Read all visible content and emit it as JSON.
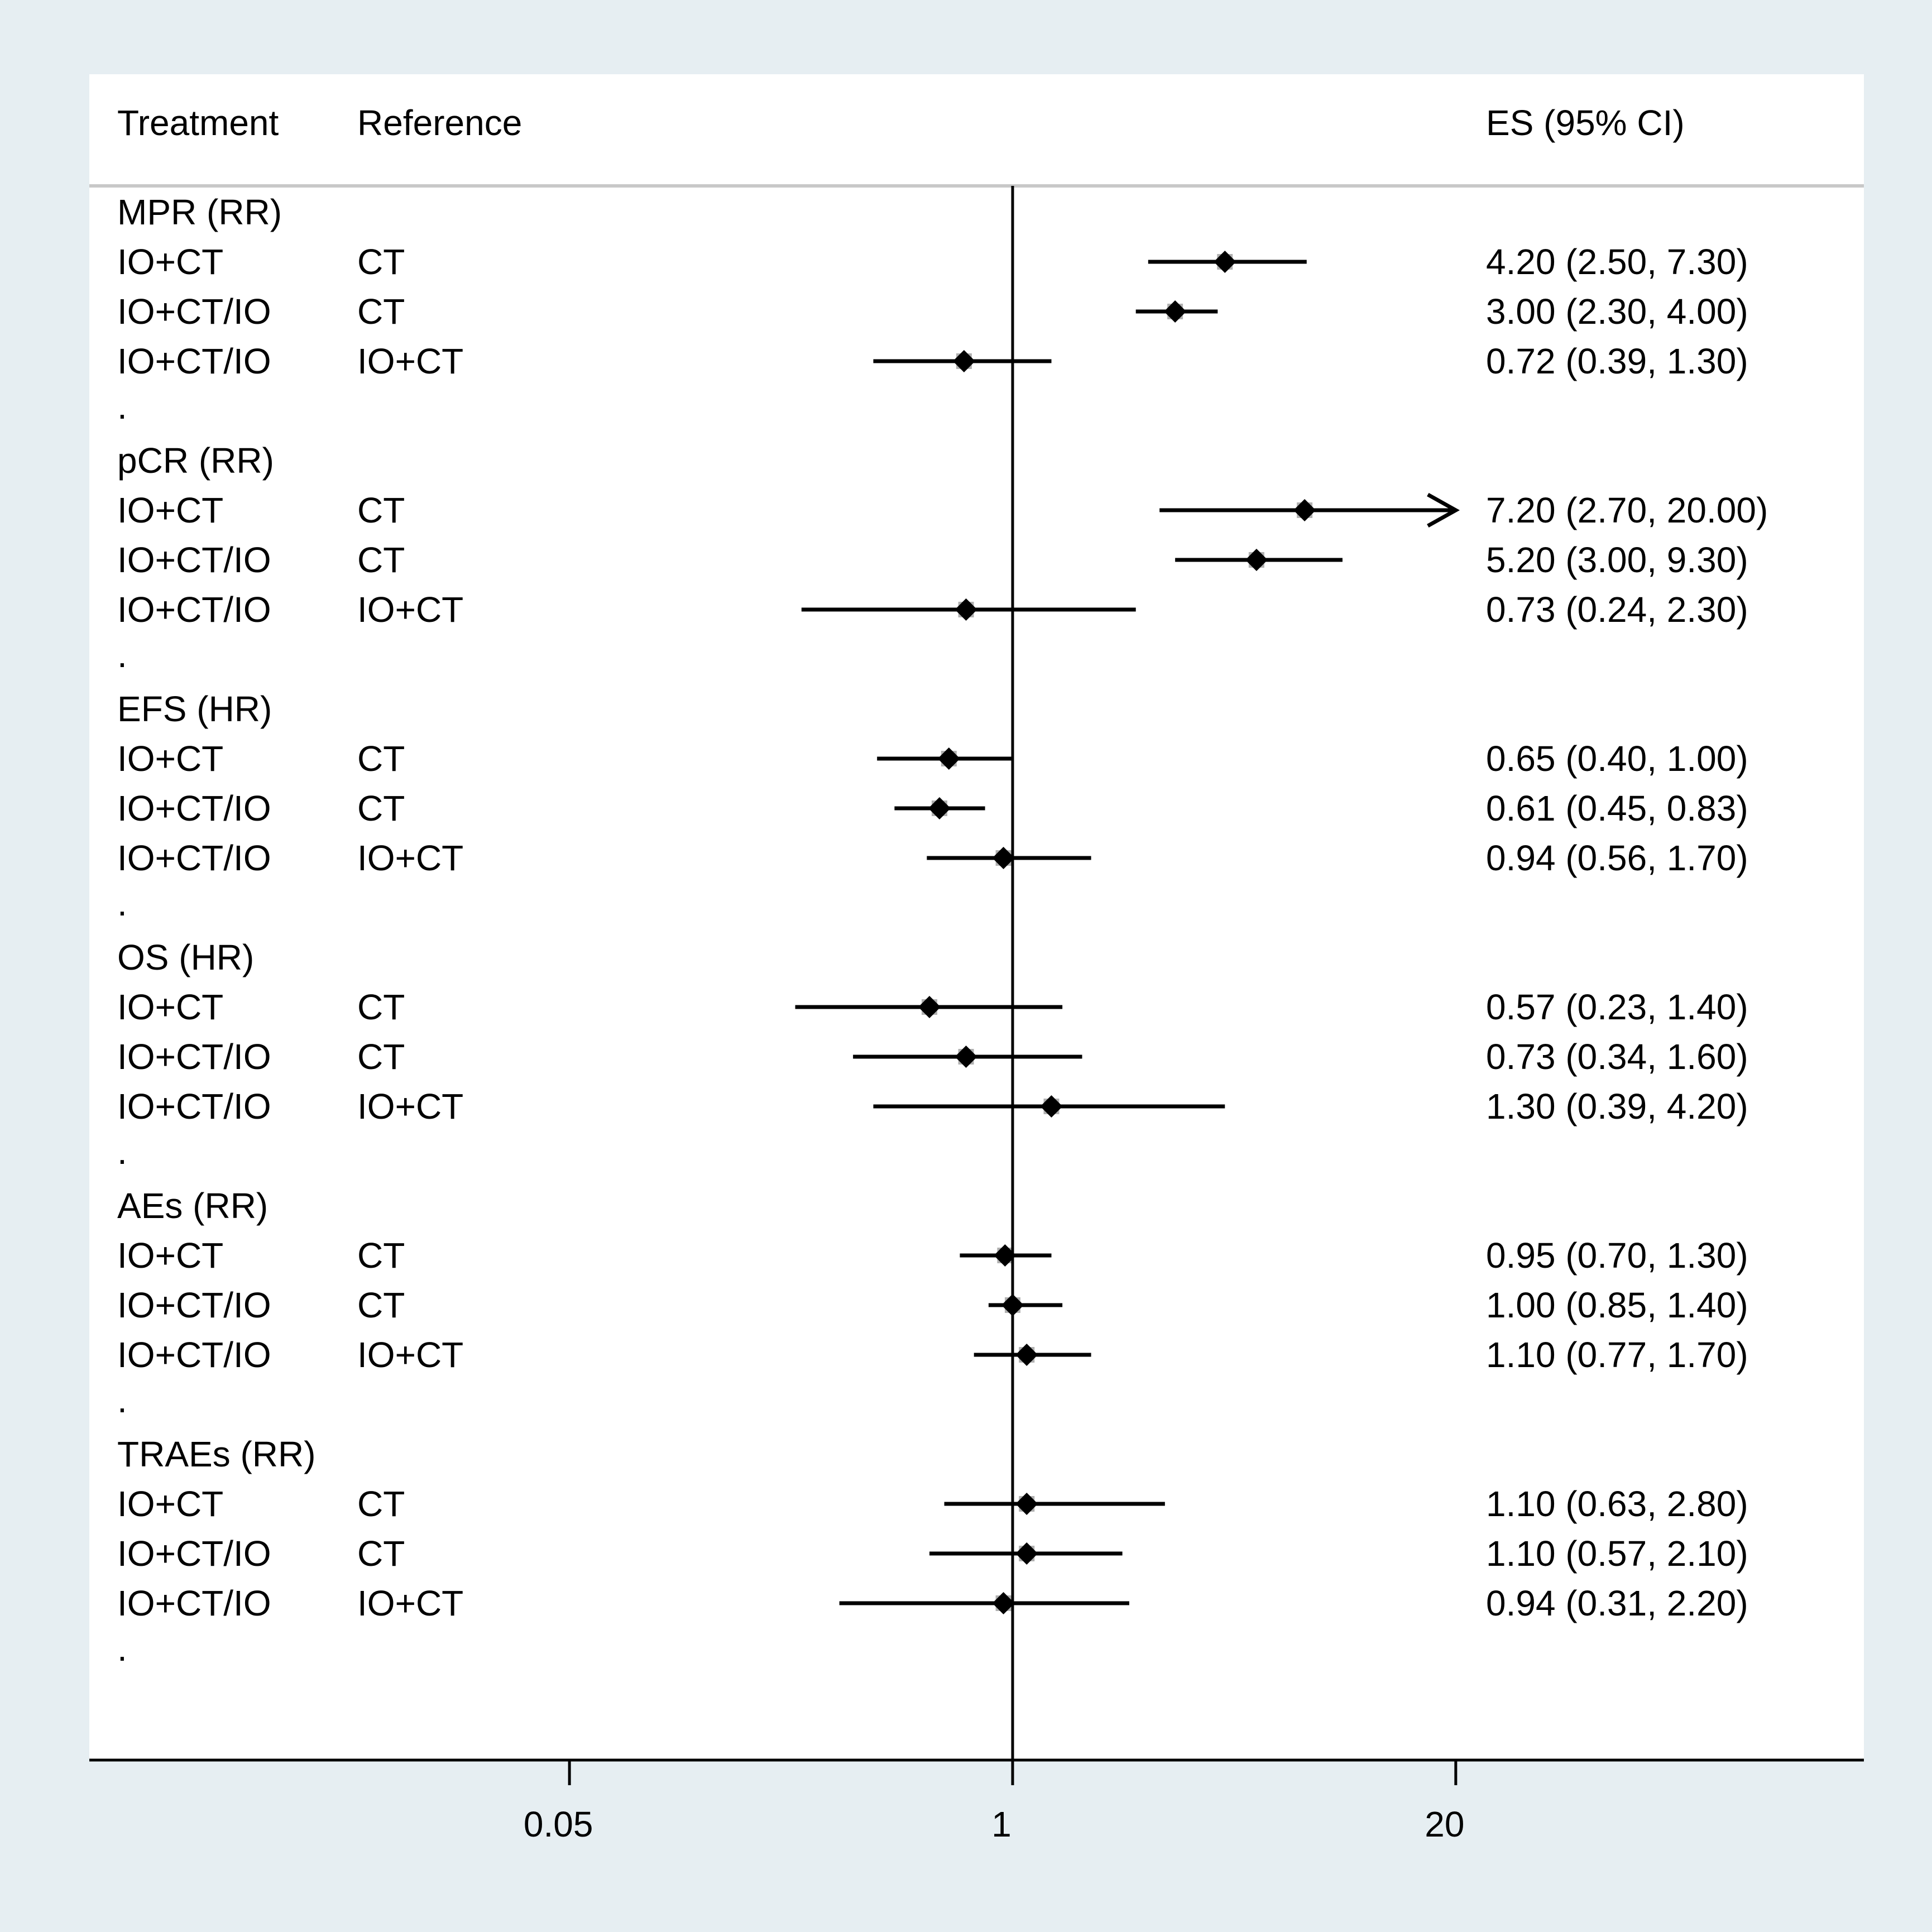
{
  "chart_data": {
    "type": "forest",
    "x_scale": "log",
    "reference_value": 1,
    "xlim": [
      0.002,
      300
    ],
    "x_ticks": [
      {
        "value": 0.05,
        "label": "0.05"
      },
      {
        "value": 1,
        "label": "1"
      },
      {
        "value": 20,
        "label": "20"
      }
    ],
    "columns": {
      "treatment": "Treatment",
      "reference": "Reference",
      "es": "ES (95% CI)"
    },
    "groups": [
      {
        "label": "MPR (RR)",
        "rows": [
          {
            "treatment": "IO+CT",
            "reference": "CT",
            "es": 4.2,
            "lo": 2.5,
            "hi": 7.3,
            "text": "4.20 (2.50, 7.30)"
          },
          {
            "treatment": "IO+CT/IO",
            "reference": "CT",
            "es": 3.0,
            "lo": 2.3,
            "hi": 4.0,
            "text": "3.00 (2.30, 4.00)"
          },
          {
            "treatment": "IO+CT/IO",
            "reference": "IO+CT",
            "es": 0.72,
            "lo": 0.39,
            "hi": 1.3,
            "text": "0.72 (0.39, 1.30)"
          }
        ]
      },
      {
        "label": "pCR (RR)",
        "rows": [
          {
            "treatment": "IO+CT",
            "reference": "CT",
            "es": 7.2,
            "lo": 2.7,
            "hi": 20.0,
            "text": "7.20 (2.70, 20.00)",
            "arrow": true
          },
          {
            "treatment": "IO+CT/IO",
            "reference": "CT",
            "es": 5.2,
            "lo": 3.0,
            "hi": 9.3,
            "text": "5.20 (3.00, 9.30)"
          },
          {
            "treatment": "IO+CT/IO",
            "reference": "IO+CT",
            "es": 0.73,
            "lo": 0.24,
            "hi": 2.3,
            "text": "0.73 (0.24, 2.30)"
          }
        ]
      },
      {
        "label": "EFS (HR)",
        "rows": [
          {
            "treatment": "IO+CT",
            "reference": "CT",
            "es": 0.65,
            "lo": 0.4,
            "hi": 1.0,
            "text": "0.65 (0.40, 1.00)"
          },
          {
            "treatment": "IO+CT/IO",
            "reference": "CT",
            "es": 0.61,
            "lo": 0.45,
            "hi": 0.83,
            "text": "0.61 (0.45, 0.83)"
          },
          {
            "treatment": "IO+CT/IO",
            "reference": "IO+CT",
            "es": 0.94,
            "lo": 0.56,
            "hi": 1.7,
            "text": "0.94 (0.56, 1.70)"
          }
        ]
      },
      {
        "label": "OS (HR)",
        "rows": [
          {
            "treatment": "IO+CT",
            "reference": "CT",
            "es": 0.57,
            "lo": 0.23,
            "hi": 1.4,
            "text": "0.57 (0.23, 1.40)"
          },
          {
            "treatment": "IO+CT/IO",
            "reference": "CT",
            "es": 0.73,
            "lo": 0.34,
            "hi": 1.6,
            "text": "0.73 (0.34, 1.60)"
          },
          {
            "treatment": "IO+CT/IO",
            "reference": "IO+CT",
            "es": 1.3,
            "lo": 0.39,
            "hi": 4.2,
            "text": "1.30 (0.39, 4.20)"
          }
        ]
      },
      {
        "label": "AEs (RR)",
        "rows": [
          {
            "treatment": "IO+CT",
            "reference": "CT",
            "es": 0.95,
            "lo": 0.7,
            "hi": 1.3,
            "text": "0.95 (0.70, 1.30)"
          },
          {
            "treatment": "IO+CT/IO",
            "reference": "CT",
            "es": 1.0,
            "lo": 0.85,
            "hi": 1.4,
            "text": "1.00 (0.85, 1.40)"
          },
          {
            "treatment": "IO+CT/IO",
            "reference": "IO+CT",
            "es": 1.1,
            "lo": 0.77,
            "hi": 1.7,
            "text": "1.10 (0.77, 1.70)"
          }
        ]
      },
      {
        "label": "TRAEs (RR)",
        "rows": [
          {
            "treatment": "IO+CT",
            "reference": "CT",
            "es": 1.1,
            "lo": 0.63,
            "hi": 2.8,
            "text": "1.10 (0.63, 2.80)"
          },
          {
            "treatment": "IO+CT/IO",
            "reference": "CT",
            "es": 1.1,
            "lo": 0.57,
            "hi": 2.1,
            "text": "1.10 (0.57, 2.10)"
          },
          {
            "treatment": "IO+CT/IO",
            "reference": "IO+CT",
            "es": 0.94,
            "lo": 0.31,
            "hi": 2.2,
            "text": "0.94 (0.31, 2.20)"
          }
        ]
      }
    ],
    "group_separator": ".",
    "colors": {
      "page_background": "#e6eef2",
      "plot_background": "#ffffff",
      "header_rule": "#c8c8c8",
      "ink": "#000000",
      "marker_halo": "#b0b0b0"
    }
  }
}
